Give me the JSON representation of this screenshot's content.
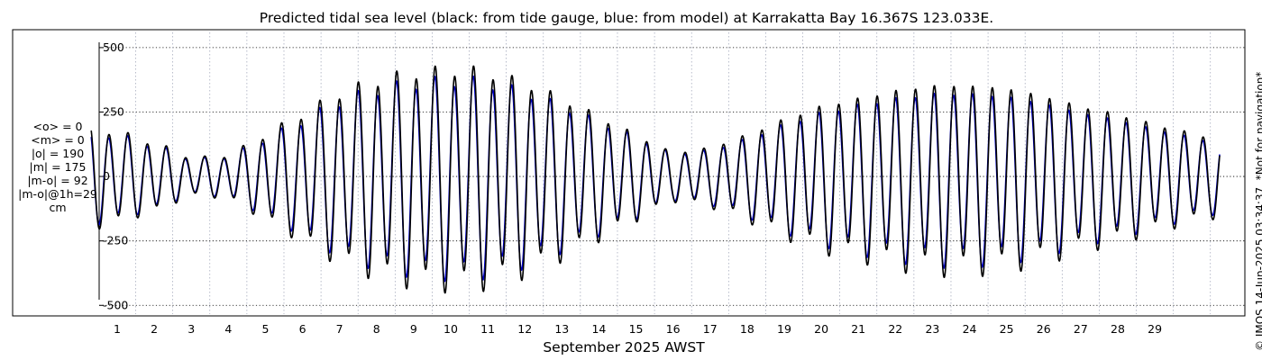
{
  "chart_data": {
    "type": "line",
    "title": "Predicted tidal sea level (black: from tide gauge, blue: from model) at Karrakatta Bay 16.367S 123.033E.",
    "xlabel": "September 2025 AWST",
    "ylabel": "",
    "x_range_days": [
      0.3,
      30.75
    ],
    "ylim": [
      -520,
      545
    ],
    "yticks": [
      500,
      250,
      0,
      -250,
      -500
    ],
    "ytick_labels": [
      "500",
      "250",
      "0",
      "-250",
      "-500"
    ],
    "xticks": [
      1,
      2,
      3,
      4,
      5,
      6,
      7,
      8,
      9,
      10,
      11,
      12,
      13,
      14,
      15,
      16,
      17,
      18,
      19,
      20,
      21,
      22,
      23,
      24,
      25,
      26,
      27,
      28,
      29
    ],
    "xtick_labels": [
      "1",
      "2",
      "3",
      "4",
      "5",
      "6",
      "7",
      "8",
      "9",
      "10",
      "11",
      "12",
      "13",
      "14",
      "15",
      "16",
      "17",
      "18",
      "19",
      "20",
      "21",
      "22",
      "23",
      "24",
      "25",
      "26",
      "27",
      "28",
      "29"
    ],
    "grid": true,
    "series": [
      {
        "name": "from tide gauge",
        "color": "#000000",
        "amplitude_envelope": {
          "day": [
            0.45,
            2,
            3,
            4,
            5,
            6,
            7,
            8,
            9,
            10,
            10.5,
            11,
            12,
            13,
            14,
            15,
            16,
            17,
            18,
            19,
            20,
            21,
            22,
            23,
            24,
            25,
            26,
            27,
            28,
            29,
            30.5
          ],
          "amp": [
            190,
            130,
            70,
            80,
            160,
            240,
            320,
            370,
            400,
            410,
            410,
            400,
            360,
            300,
            230,
            160,
            90,
            110,
            160,
            220,
            270,
            300,
            330,
            350,
            350,
            340,
            310,
            270,
            240,
            200,
            150
          ]
        }
      },
      {
        "name": "from model",
        "color": "#0000cc",
        "amplitude_envelope": {
          "day": [
            0.45,
            2,
            3,
            4,
            5,
            6,
            7,
            8,
            9,
            10,
            10.5,
            11,
            12,
            13,
            14,
            15,
            16,
            17,
            18,
            19,
            20,
            21,
            22,
            23,
            24,
            25,
            26,
            27,
            28,
            29,
            30.5
          ],
          "amp": [
            175,
            120,
            65,
            75,
            145,
            215,
            290,
            335,
            360,
            370,
            370,
            360,
            325,
            270,
            210,
            150,
            85,
            100,
            145,
            200,
            245,
            275,
            300,
            318,
            318,
            308,
            282,
            245,
            218,
            182,
            135
          ]
        }
      }
    ]
  },
  "stats": {
    "lines": [
      "<o> = 0",
      "<m> = 0",
      "|o| = 190",
      "|m| = 175",
      "|m-o| = 92",
      "|m-o|@1h=29",
      "cm"
    ]
  },
  "side_note": "© IMOS 14-Jun-2025 03:34:37. *Not for navigation*"
}
